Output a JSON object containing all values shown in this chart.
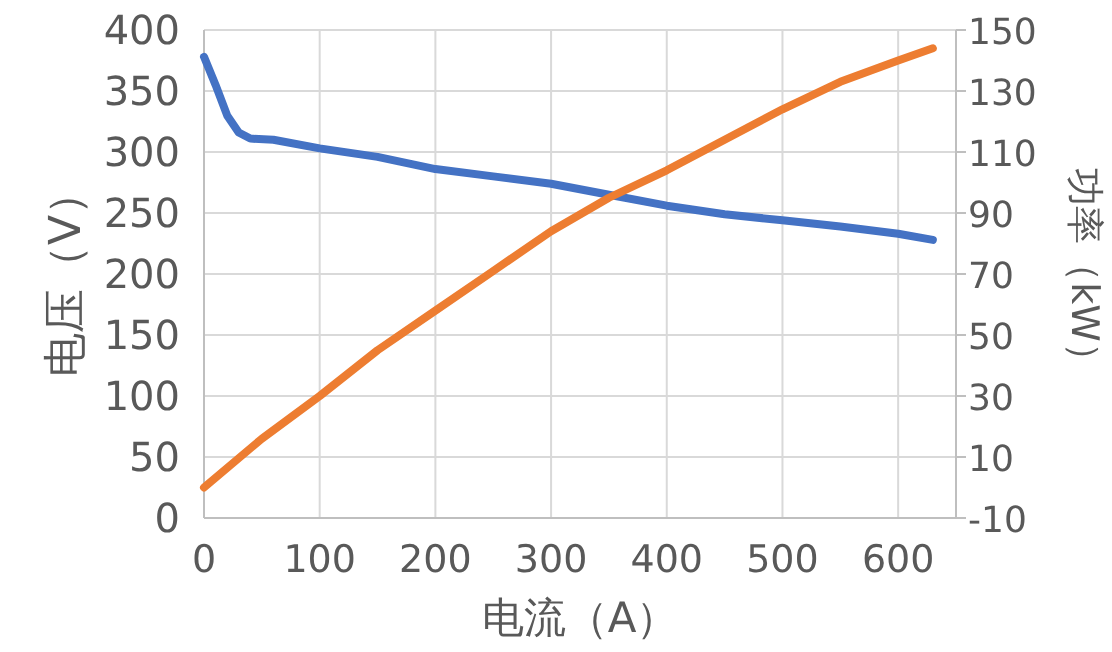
{
  "chart_data": {
    "type": "line",
    "xlabel": "电流（A）",
    "ylabel": "电压（V）",
    "y2label": "功率（kW）",
    "xlim": [
      0,
      650
    ],
    "xticks": [
      0,
      100,
      200,
      300,
      400,
      500,
      600
    ],
    "ylim": [
      0,
      400
    ],
    "yticks": [
      0,
      50,
      100,
      150,
      200,
      250,
      300,
      350,
      400
    ],
    "y2lim": [
      -10,
      150
    ],
    "y2ticks": [
      -10,
      10,
      30,
      50,
      70,
      90,
      110,
      130,
      150
    ],
    "grid": true,
    "series": [
      {
        "color": "#4472c4",
        "x": [
          0,
          10,
          20,
          30,
          40,
          60,
          100,
          150,
          200,
          250,
          300,
          350,
          400,
          450,
          500,
          550,
          600,
          630
        ],
        "values": [
          378,
          355,
          330,
          316,
          311,
          310,
          303,
          296,
          286,
          280,
          274,
          265,
          256,
          249,
          244,
          239,
          233,
          228
        ]
      },
      {
        "color": "#ed7d31",
        "axis": "y2",
        "x": [
          0,
          50,
          100,
          150,
          200,
          250,
          300,
          350,
          400,
          450,
          500,
          550,
          600,
          630
        ],
        "values": [
          0,
          16,
          30,
          45,
          58,
          71,
          84,
          95,
          104,
          114,
          124,
          133,
          140,
          144
        ]
      }
    ]
  }
}
